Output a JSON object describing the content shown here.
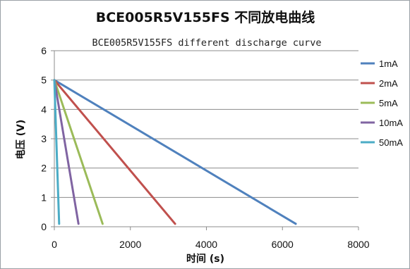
{
  "chart_data": {
    "type": "line",
    "title": "BCE005R5V155FS 不同放电曲线",
    "subtitle": "BCE005R5V155FS different discharge curve",
    "xlabel": "时间 (s)",
    "ylabel": "电压 (V)",
    "xlim": [
      0,
      8000
    ],
    "ylim": [
      0,
      6
    ],
    "x_ticks": [
      "0",
      "2000",
      "4000",
      "6000",
      "8000"
    ],
    "y_ticks": [
      "0",
      "1",
      "2",
      "3",
      "4",
      "5",
      "6"
    ],
    "grid": "horizontal",
    "legend_position": "right",
    "series": [
      {
        "name": "1mA",
        "color": "#4f81bd",
        "points": [
          [
            0,
            5
          ],
          [
            6350,
            0.1
          ]
        ]
      },
      {
        "name": "2mA",
        "color": "#c0504d",
        "points": [
          [
            0,
            5
          ],
          [
            3175,
            0.1
          ]
        ]
      },
      {
        "name": "5mA",
        "color": "#9bbb59",
        "points": [
          [
            0,
            5
          ],
          [
            1270,
            0.1
          ]
        ]
      },
      {
        "name": "10mA",
        "color": "#8064a2",
        "points": [
          [
            0,
            5
          ],
          [
            635,
            0.1
          ]
        ]
      },
      {
        "name": "50mA",
        "color": "#4bacc6",
        "points": [
          [
            0,
            5
          ],
          [
            127,
            0.1
          ]
        ]
      }
    ]
  }
}
